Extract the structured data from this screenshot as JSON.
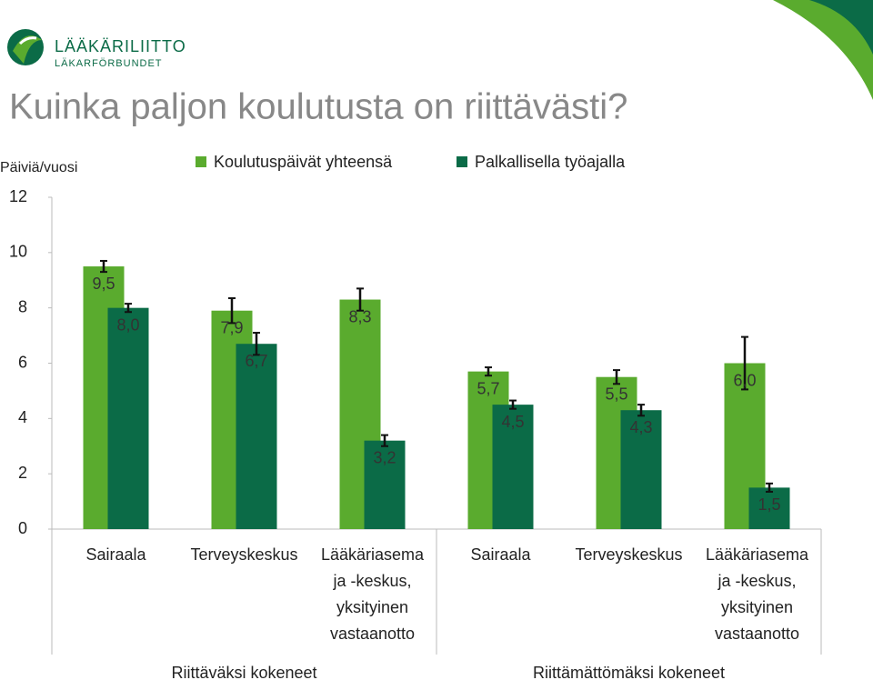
{
  "header": {
    "brand": "LÄÄKÄRILIITTO",
    "brand_sub": "LÄKARFÖRBUNDET"
  },
  "chart_data": {
    "type": "bar",
    "title": "Kuinka paljon koulutusta on riittävästi?",
    "y_label": "Päiviä/vuosi",
    "categories": [
      "Sairaala",
      "Terveyskeskus",
      [
        "Lääkäriasema",
        "ja -keskus,",
        "yksityinen",
        "vastaanotto"
      ],
      "Sairaala",
      "Terveyskeskus",
      [
        "Lääkäriasema",
        "ja -keskus,",
        "yksityinen",
        "vastaanotto"
      ]
    ],
    "group_labels": [
      "Riittäväksi kokeneet",
      "Riittämättömäksi kokeneet"
    ],
    "series": [
      {
        "name": "Koulutuspäivät yhteensä",
        "color": "#5aab2e",
        "values": [
          9.5,
          7.9,
          8.3,
          5.7,
          5.5,
          6.0
        ],
        "value_labels": [
          "9,5",
          "7,9",
          "8,3",
          "5,7",
          "5,5",
          "6,0"
        ],
        "errors": [
          0.2,
          0.45,
          0.4,
          0.15,
          0.25,
          0.95
        ]
      },
      {
        "name": "Palkallisella työajalla",
        "color": "#0b6b47",
        "values": [
          8.0,
          6.7,
          3.2,
          4.5,
          4.3,
          1.5
        ],
        "value_labels": [
          "8,0",
          "6,7",
          "3,2",
          "4,5",
          "4,3",
          "1,5"
        ],
        "errors": [
          0.15,
          0.4,
          0.2,
          0.15,
          0.2,
          0.15
        ]
      }
    ],
    "ylim": [
      0,
      12
    ],
    "yticks": [
      0,
      2,
      4,
      6,
      8,
      10,
      12
    ],
    "legend": "top"
  }
}
